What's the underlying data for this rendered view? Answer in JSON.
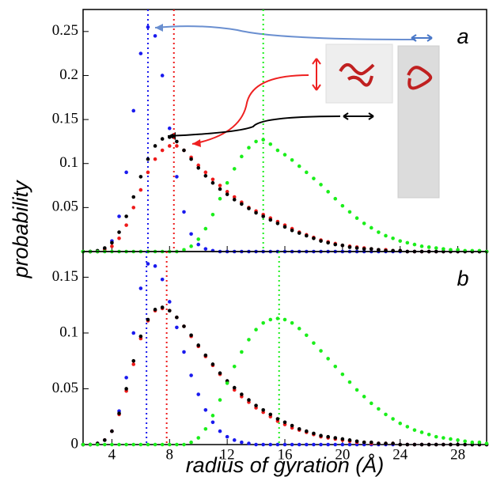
{
  "chart_data": [
    {
      "type": "scatter",
      "label": "a",
      "ylabel": "probability",
      "x": [
        2,
        2.5,
        3,
        3.5,
        4,
        4.5,
        5,
        5.5,
        6,
        6.5,
        7,
        7.5,
        8,
        8.5,
        9,
        9.5,
        10,
        10.5,
        11,
        11.5,
        12,
        12.5,
        13,
        13.5,
        14,
        14.5,
        15,
        15.5,
        16,
        16.5,
        17,
        17.5,
        18,
        18.5,
        19,
        19.5,
        20,
        20.5,
        21,
        21.5,
        22,
        22.5,
        23,
        23.5,
        24,
        24.5,
        25,
        25.5,
        26,
        26.5,
        27,
        27.5,
        28,
        28.5,
        29,
        29.5,
        30
      ],
      "xlim": [
        2,
        30
      ],
      "xticks": [
        4,
        8,
        12,
        16,
        20,
        24,
        28
      ],
      "xtick_labels": false,
      "ylim": [
        0,
        0.275
      ],
      "yticks": [
        0.05,
        0.1,
        0.15,
        0.2,
        0.25
      ],
      "markers": [
        {
          "x": 6.5,
          "color": "#1a1aee"
        },
        {
          "x": 8.3,
          "color": "#ee1a1a"
        },
        {
          "x": 14.5,
          "color": "#1aee1a"
        }
      ],
      "series": [
        {
          "color": "#1a1aee",
          "values": [
            0,
            0,
            0,
            0.003,
            0.012,
            0.04,
            0.09,
            0.16,
            0.225,
            0.255,
            0.245,
            0.2,
            0.14,
            0.085,
            0.045,
            0.02,
            0.008,
            0.003,
            0.001,
            0,
            0,
            0,
            0,
            0,
            0,
            0,
            0,
            0,
            0,
            0,
            0,
            0,
            0,
            0,
            0,
            0,
            0,
            0,
            0,
            0,
            0,
            0,
            0,
            0,
            0,
            0,
            0,
            0,
            0,
            0,
            0,
            0,
            0,
            0,
            0,
            0,
            0
          ]
        },
        {
          "color": "#ee1a1a",
          "values": [
            0,
            0,
            0,
            0.002,
            0.006,
            0.015,
            0.03,
            0.05,
            0.07,
            0.09,
            0.105,
            0.115,
            0.12,
            0.12,
            0.115,
            0.107,
            0.098,
            0.09,
            0.082,
            0.075,
            0.068,
            0.062,
            0.056,
            0.05,
            0.046,
            0.042,
            0.038,
            0.034,
            0.03,
            0.026,
            0.022,
            0.019,
            0.016,
            0.013,
            0.011,
            0.009,
            0.007,
            0.006,
            0.005,
            0.004,
            0.003,
            0.002,
            0.002,
            0.001,
            0.001,
            0,
            0,
            0,
            0,
            0,
            0,
            0,
            0,
            0,
            0,
            0,
            0
          ]
        },
        {
          "color": "#000000",
          "values": [
            0,
            0,
            0.001,
            0.004,
            0.01,
            0.022,
            0.04,
            0.062,
            0.085,
            0.105,
            0.12,
            0.128,
            0.13,
            0.125,
            0.115,
            0.105,
            0.095,
            0.086,
            0.078,
            0.071,
            0.065,
            0.059,
            0.054,
            0.049,
            0.044,
            0.04,
            0.036,
            0.032,
            0.028,
            0.024,
            0.021,
            0.018,
            0.015,
            0.012,
            0.01,
            0.008,
            0.007,
            0.005,
            0.004,
            0.003,
            0.003,
            0.002,
            0.001,
            0.001,
            0.001,
            0,
            0,
            0,
            0,
            0,
            0,
            0,
            0,
            0,
            0,
            0,
            0
          ]
        },
        {
          "color": "#1aee1a",
          "values": [
            0,
            0,
            0,
            0,
            0,
            0,
            0,
            0,
            0,
            0,
            0,
            0,
            0,
            0,
            0.002,
            0.006,
            0.014,
            0.026,
            0.042,
            0.06,
            0.078,
            0.094,
            0.108,
            0.118,
            0.125,
            0.127,
            0.122,
            0.115,
            0.11,
            0.104,
            0.097,
            0.09,
            0.083,
            0.076,
            0.068,
            0.06,
            0.052,
            0.045,
            0.038,
            0.032,
            0.027,
            0.022,
            0.018,
            0.015,
            0.012,
            0.01,
            0.008,
            0.006,
            0.005,
            0.004,
            0.003,
            0.002,
            0.002,
            0.001,
            0.001,
            0.001,
            0
          ]
        }
      ]
    },
    {
      "type": "scatter",
      "label": "b",
      "xlabel": "radius of gyration (Å)",
      "x": [
        2,
        2.5,
        3,
        3.5,
        4,
        4.5,
        5,
        5.5,
        6,
        6.5,
        7,
        7.5,
        8,
        8.5,
        9,
        9.5,
        10,
        10.5,
        11,
        11.5,
        12,
        12.5,
        13,
        13.5,
        14,
        14.5,
        15,
        15.5,
        16,
        16.5,
        17,
        17.5,
        18,
        18.5,
        19,
        19.5,
        20,
        20.5,
        21,
        21.5,
        22,
        22.5,
        23,
        23.5,
        24,
        24.5,
        25,
        25.5,
        26,
        26.5,
        27,
        27.5,
        28,
        28.5,
        29,
        29.5,
        30
      ],
      "xlim": [
        2,
        30
      ],
      "xticks": [
        4,
        8,
        12,
        16,
        20,
        24,
        28
      ],
      "ylim": [
        0,
        0.173
      ],
      "yticks": [
        0,
        0.05,
        0.1,
        0.15
      ],
      "markers": [
        {
          "x": 6.4,
          "color": "#1a1aee"
        },
        {
          "x": 7.8,
          "color": "#ee1a1a"
        },
        {
          "x": 15.6,
          "color": "#1aee1a"
        }
      ],
      "series": [
        {
          "color": "#1a1aee",
          "values": [
            0,
            0,
            0.001,
            0.004,
            0.012,
            0.03,
            0.06,
            0.1,
            0.14,
            0.162,
            0.16,
            0.148,
            0.128,
            0.105,
            0.083,
            0.062,
            0.045,
            0.031,
            0.02,
            0.012,
            0.007,
            0.004,
            0.002,
            0.001,
            0,
            0,
            0,
            0,
            0,
            0,
            0,
            0,
            0,
            0,
            0,
            0,
            0,
            0,
            0,
            0,
            0,
            0,
            0,
            0,
            0,
            0,
            0,
            0,
            0,
            0,
            0,
            0,
            0,
            0,
            0,
            0,
            0
          ]
        },
        {
          "color": "#ee1a1a",
          "values": [
            0,
            0,
            0.001,
            0.004,
            0.012,
            0.027,
            0.048,
            0.072,
            0.095,
            0.111,
            0.12,
            0.122,
            0.12,
            0.114,
            0.106,
            0.097,
            0.088,
            0.079,
            0.071,
            0.063,
            0.056,
            0.049,
            0.043,
            0.038,
            0.033,
            0.029,
            0.025,
            0.021,
            0.018,
            0.015,
            0.013,
            0.011,
            0.009,
            0.007,
            0.006,
            0.005,
            0.004,
            0.003,
            0.002,
            0.002,
            0.001,
            0.001,
            0.001,
            0.001,
            0,
            0,
            0,
            0,
            0,
            0,
            0,
            0,
            0,
            0,
            0,
            0,
            0
          ]
        },
        {
          "color": "#000000",
          "values": [
            0,
            0,
            0.001,
            0.004,
            0.012,
            0.028,
            0.05,
            0.075,
            0.097,
            0.112,
            0.121,
            0.123,
            0.12,
            0.114,
            0.106,
            0.098,
            0.089,
            0.08,
            0.072,
            0.064,
            0.057,
            0.051,
            0.045,
            0.04,
            0.035,
            0.031,
            0.027,
            0.023,
            0.02,
            0.017,
            0.014,
            0.012,
            0.01,
            0.008,
            0.007,
            0.006,
            0.005,
            0.004,
            0.003,
            0.002,
            0.002,
            0.001,
            0.001,
            0.001,
            0,
            0,
            0,
            0,
            0,
            0,
            0,
            0,
            0,
            0,
            0,
            0,
            0
          ]
        },
        {
          "color": "#1aee1a",
          "values": [
            0,
            0,
            0,
            0,
            0,
            0,
            0,
            0,
            0,
            0,
            0,
            0,
            0,
            0,
            0,
            0.002,
            0.006,
            0.014,
            0.026,
            0.04,
            0.055,
            0.07,
            0.083,
            0.094,
            0.103,
            0.109,
            0.112,
            0.113,
            0.112,
            0.109,
            0.104,
            0.098,
            0.091,
            0.084,
            0.077,
            0.07,
            0.063,
            0.056,
            0.049,
            0.043,
            0.037,
            0.032,
            0.027,
            0.023,
            0.019,
            0.016,
            0.013,
            0.011,
            0.009,
            0.007,
            0.006,
            0.005,
            0.004,
            0.003,
            0.002,
            0.002,
            0.001
          ]
        }
      ]
    }
  ]
}
